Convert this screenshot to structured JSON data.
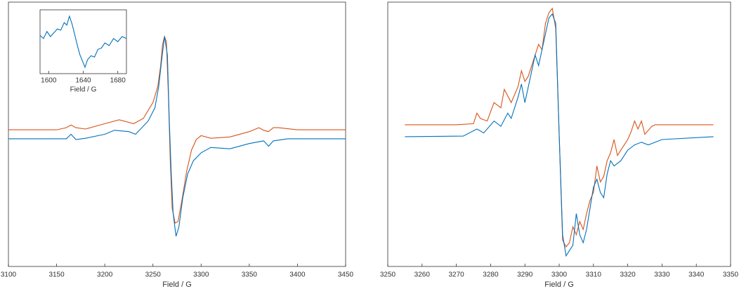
{
  "chart_data": [
    {
      "type": "line",
      "xlabel": "Field / G",
      "xlim": [
        3100,
        3450
      ],
      "xticks": [
        3100,
        3150,
        3200,
        3250,
        3300,
        3350,
        3400,
        3450
      ],
      "ylim": [
        0,
        100
      ],
      "series": [
        {
          "color": "#d95319",
          "x": [
            3100,
            3150,
            3160,
            3165,
            3170,
            3180,
            3200,
            3215,
            3230,
            3240,
            3250,
            3255,
            3258,
            3260,
            3262,
            3264,
            3266,
            3268,
            3270,
            3273,
            3276,
            3280,
            3285,
            3290,
            3295,
            3300,
            3310,
            3330,
            3350,
            3360,
            3365,
            3370,
            3375,
            3380,
            3400,
            3450
          ],
          "values": [
            51.7,
            51.7,
            52.5,
            53.5,
            52.5,
            52,
            54,
            55.5,
            54,
            56,
            62,
            68,
            76,
            84,
            87,
            85,
            65,
            40,
            22,
            16.4,
            17,
            25,
            36,
            44,
            48,
            49.5,
            48.5,
            49,
            51,
            52.5,
            51.5,
            51,
            52.5,
            52.5,
            51.7,
            51.7
          ]
        },
        {
          "color": "#0072bd",
          "x": [
            3100,
            3160,
            3165,
            3170,
            3180,
            3200,
            3210,
            3225,
            3232,
            3245,
            3252,
            3256,
            3259,
            3262,
            3265,
            3267,
            3269,
            3271,
            3274,
            3277,
            3281,
            3286,
            3292,
            3300,
            3310,
            3330,
            3350,
            3365,
            3370,
            3375,
            3390,
            3450
          ],
          "values": [
            48.3,
            48.3,
            50,
            48,
            48.5,
            50,
            51.5,
            51,
            50,
            55,
            60,
            68,
            78,
            87,
            80,
            55,
            35,
            20,
            11.4,
            15,
            26,
            35,
            40,
            43,
            45,
            44.5,
            46.5,
            47.5,
            45.5,
            47.5,
            48.3,
            48.3
          ]
        }
      ]
    },
    {
      "type": "line",
      "xlabel": "Field / G",
      "xlim": [
        3250,
        3350
      ],
      "xticks": [
        3250,
        3260,
        3270,
        3280,
        3290,
        3300,
        3310,
        3320,
        3330,
        3340,
        3350
      ],
      "ylim": [
        0,
        100
      ],
      "series": [
        {
          "color": "#d95319",
          "x": [
            3255,
            3270,
            3275,
            3276,
            3277,
            3279,
            3281,
            3283,
            3284,
            3286,
            3288,
            3289,
            3290,
            3291,
            3293,
            3294,
            3295,
            3296,
            3297,
            3298,
            3299,
            3300,
            3301,
            3302,
            3303,
            3304,
            3305,
            3306,
            3307,
            3308,
            3309,
            3310,
            3311,
            3312,
            3313,
            3314,
            3315,
            3316,
            3317,
            3318,
            3320,
            3321,
            3322,
            3323,
            3324,
            3325,
            3327,
            3328,
            3345
          ],
          "values": [
            53.6,
            53.6,
            54,
            58,
            56,
            55,
            62,
            60,
            67,
            62,
            68,
            74,
            70,
            72,
            80,
            84,
            82,
            92,
            96,
            97.6,
            90,
            50,
            10,
            7.4,
            9,
            15,
            12,
            17,
            14,
            20,
            25,
            28,
            38,
            32,
            34,
            40,
            43,
            48,
            42,
            44,
            48,
            51,
            55,
            52,
            55,
            50,
            53,
            53.6,
            53.6
          ]
        },
        {
          "color": "#0072bd",
          "x": [
            3255,
            3272,
            3276,
            3278,
            3281,
            3283,
            3285,
            3286,
            3288,
            3289,
            3290,
            3292,
            3293,
            3294,
            3296,
            3297,
            3298,
            3299,
            3300,
            3301,
            3302,
            3303,
            3304,
            3305,
            3306,
            3307,
            3308,
            3309,
            3310,
            3311,
            3312,
            3313,
            3314,
            3315,
            3316,
            3318,
            3320,
            3322,
            3324,
            3326,
            3330,
            3345
          ],
          "values": [
            49.1,
            49.3,
            52,
            50.5,
            55,
            53,
            58,
            56,
            64,
            69,
            62,
            74,
            80,
            76,
            88,
            94,
            95.5,
            92,
            50,
            12,
            4,
            6,
            8,
            20,
            12,
            9,
            14,
            22,
            30,
            33,
            28,
            26,
            35,
            40,
            38,
            40,
            44,
            46,
            47,
            46,
            48,
            49.1
          ]
        }
      ]
    },
    {
      "type": "line",
      "xlabel": "Field / G",
      "xlim": [
        1590,
        1690
      ],
      "xticks": [
        1600,
        1640,
        1680
      ],
      "ylim": [
        0,
        100
      ],
      "series": [
        {
          "color": "#0072bd",
          "x": [
            1590,
            1594,
            1598,
            1602,
            1606,
            1610,
            1614,
            1618,
            1621,
            1624,
            1627,
            1630,
            1633,
            1636,
            1639,
            1642,
            1645,
            1649,
            1653,
            1657,
            1661,
            1665,
            1670,
            1675,
            1680,
            1685,
            1690
          ],
          "values": [
            60,
            55,
            66,
            58,
            64,
            70,
            68,
            80,
            76,
            90,
            78,
            62,
            45,
            30,
            20,
            10,
            22,
            28,
            26,
            38,
            40,
            48,
            44,
            55,
            50,
            58,
            55
          ]
        }
      ]
    }
  ]
}
